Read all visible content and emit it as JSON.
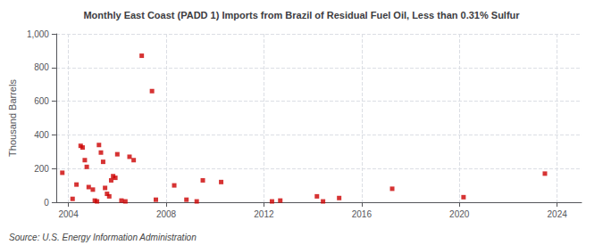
{
  "chart_data": {
    "type": "scatter",
    "title": "Monthly East Coast (PADD 1) Imports from Brazil of Residual Fuel Oil, Less than 0.31% Sulfur",
    "ylabel": "Thousand Barrels",
    "annotations": [
      "Source: U.S. Energy Information Administration"
    ],
    "x": [
      2003.75,
      2004.17,
      2004.33,
      2004.5,
      2004.58,
      2004.67,
      2004.75,
      2004.83,
      2005.0,
      2005.08,
      2005.17,
      2005.25,
      2005.33,
      2005.42,
      2005.5,
      2005.58,
      2005.67,
      2005.75,
      2005.83,
      2005.92,
      2006.0,
      2006.17,
      2006.33,
      2006.5,
      2006.67,
      2007.0,
      2007.42,
      2007.58,
      2008.33,
      2008.83,
      2009.25,
      2009.5,
      2010.25,
      2012.33,
      2012.67,
      2014.17,
      2014.42,
      2015.08,
      2017.25,
      2020.17,
      2023.5
    ],
    "values": [
      175,
      20,
      105,
      335,
      325,
      250,
      210,
      90,
      75,
      10,
      5,
      340,
      295,
      240,
      85,
      50,
      35,
      130,
      155,
      145,
      285,
      10,
      5,
      270,
      250,
      870,
      660,
      15,
      100,
      15,
      5,
      130,
      120,
      5,
      10,
      35,
      5,
      25,
      80,
      30,
      170
    ],
    "color": "#cc0000",
    "marker": "square",
    "xlim": [
      2003.5,
      2025.0
    ],
    "xticks": [
      2004,
      2008,
      2012,
      2016,
      2020,
      2024
    ],
    "ylim": [
      0,
      1000
    ],
    "yticks": [
      0,
      200,
      400,
      600,
      800,
      {
        "value": 1000,
        "label": "1,000"
      }
    ],
    "grid": true
  }
}
